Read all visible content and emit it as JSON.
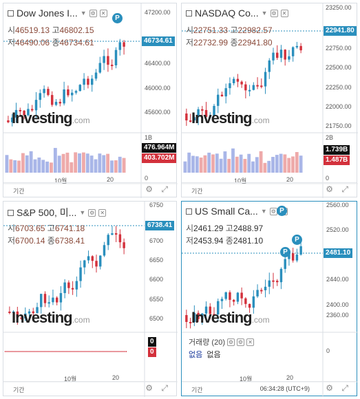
{
  "panels": [
    {
      "id": "dow",
      "title": "Dow Jones I...",
      "ohlc": {
        "open_label": "시",
        "open": "46519.13",
        "high_label": "고",
        "high": "46802.15",
        "low_label": "저",
        "low": "46490.06",
        "close_label": "종",
        "close": "46734.61"
      },
      "price_tag": "46734.61",
      "axis": [
        "47200.00",
        "46400.00",
        "46000.00",
        "45600.00"
      ],
      "vol_axis": [
        "1B",
        "0"
      ],
      "vol_tags": [
        "476.964M",
        "403.702M"
      ],
      "month_label": "10월",
      "day_label": "20",
      "period": "기간",
      "has_badge_p": true
    },
    {
      "id": "nasdaq",
      "title": "NASDAQ Co...",
      "ohlc": {
        "open_label": "시",
        "open": "22751.33",
        "high_label": "고",
        "high": "22982.57",
        "low_label": "저",
        "low": "22732.99",
        "close_label": "종",
        "close": "22941.80"
      },
      "price_tag": "22941.80",
      "axis": [
        "23250.00",
        "22750.00",
        "22500.00",
        "22250.00",
        "22000.00",
        "21750.00"
      ],
      "vol_axis": [
        "2B",
        "0"
      ],
      "vol_tags": [
        "1.739B",
        "1.487B"
      ],
      "month_label": "10월",
      "day_label": "20",
      "period": "기간"
    },
    {
      "id": "sp500",
      "title": "S&P 500, 미...",
      "ohlc": {
        "open_label": "시",
        "open": "6703.65",
        "high_label": "고",
        "high": "6741.18",
        "low_label": "저",
        "low": "6700.14",
        "close_label": "종",
        "close": "6738.41"
      },
      "price_tag": "6738.41",
      "axis": [
        "6750",
        "6700",
        "6650",
        "6600",
        "6550",
        "6500"
      ],
      "vol_axis": [
        "0"
      ],
      "vol_tags": [
        "0",
        "0"
      ],
      "month_label": "10월",
      "day_label": "20",
      "period": "기간"
    },
    {
      "id": "russell",
      "title": "US Small Ca...",
      "ohlc": {
        "open_label": "시",
        "open": "2461.29",
        "high_label": "고",
        "high": "2488.97",
        "low_label": "저",
        "low": "2453.94",
        "close_label": "종",
        "close": "2481.10"
      },
      "price_tag": "2481.10",
      "axis": [
        "2560.00",
        "2520.00",
        "2440.00",
        "2400.00",
        "2360.00"
      ],
      "vol_axis": [
        "0"
      ],
      "vol_title": "거래량 (20)",
      "vol_values": [
        "없음",
        "없음"
      ],
      "month_label": "10월",
      "day_label": "20",
      "period": "기간",
      "clock": "06:34:28 (UTC+9)"
    }
  ],
  "watermark": {
    "brand": "Investing",
    "suffix": ".com"
  },
  "colors": {
    "up": "#2a8fbd",
    "down": "#d3313c",
    "vol_up": "#a9b6e8",
    "vol_down": "#eeaaaa"
  }
}
